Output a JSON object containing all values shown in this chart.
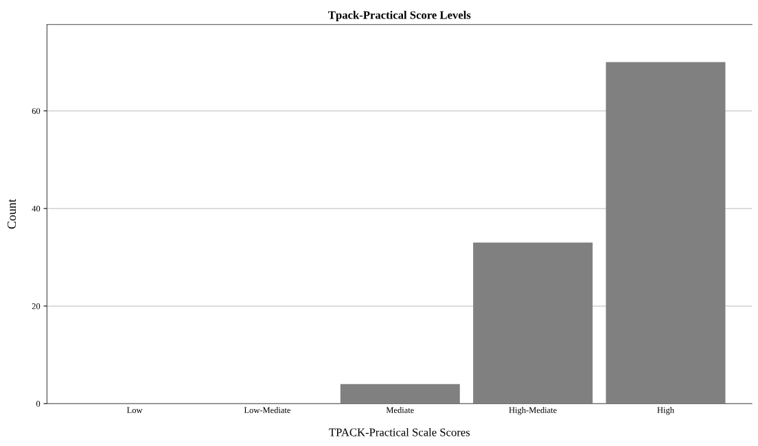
{
  "chart_data": {
    "type": "bar",
    "title": "Tpack-Practical Score Levels",
    "xlabel": "TPACK-Practical Scale Scores",
    "ylabel": "Count",
    "categories": [
      "Low",
      "Low-Mediate",
      "Mediate",
      "High-Mediate",
      "High"
    ],
    "values": [
      0,
      0,
      4,
      33,
      70
    ],
    "color": "#808080",
    "ylim": [
      0,
      77.7
    ],
    "yticks": [
      0,
      20,
      40,
      60
    ],
    "grid": "y",
    "legend": false
  }
}
